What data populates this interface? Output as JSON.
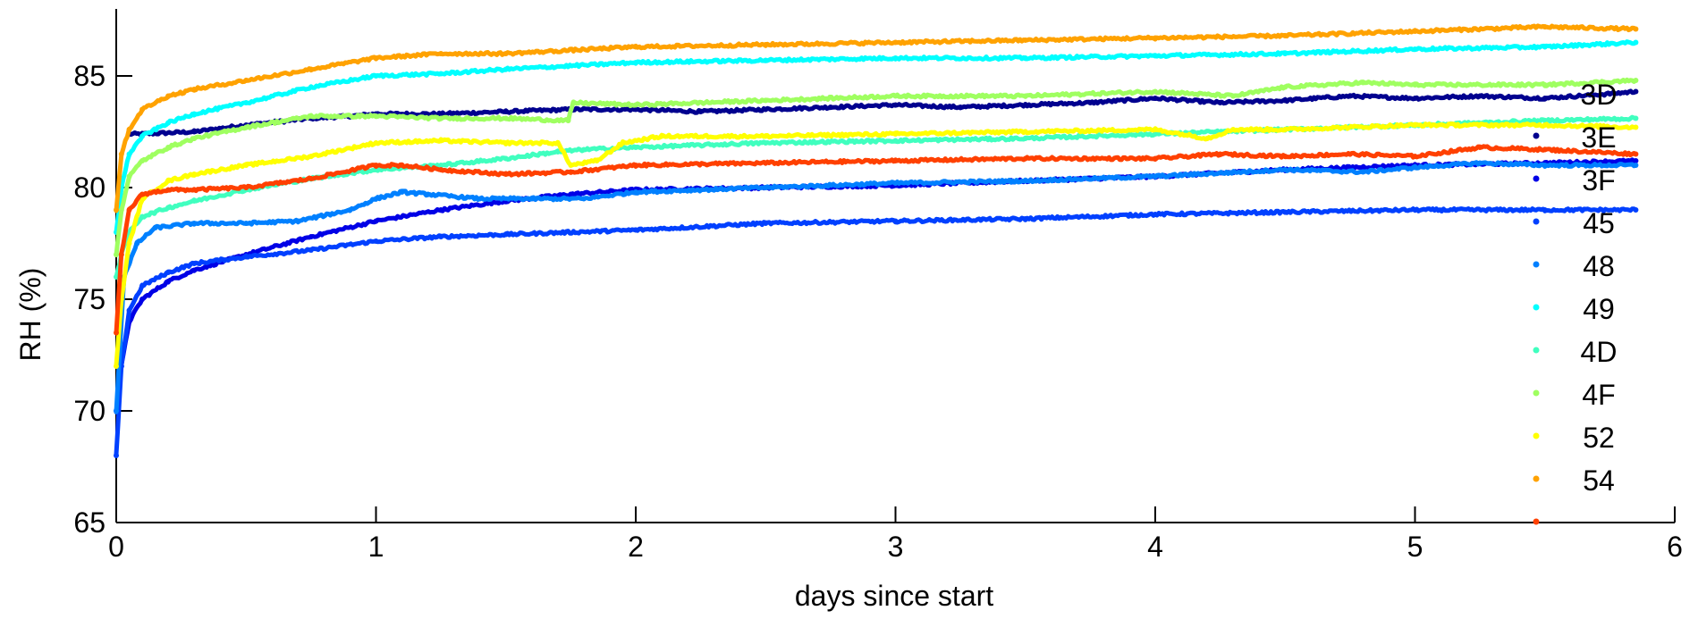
{
  "chart_data": {
    "type": "scatter",
    "title": "",
    "xlabel": "days since start",
    "ylabel": "RH (%)",
    "xlim": [
      0,
      6
    ],
    "ylim": [
      65,
      88
    ],
    "xticks": [
      0,
      1,
      2,
      3,
      4,
      5,
      6
    ],
    "yticks": [
      65,
      70,
      75,
      80,
      85
    ],
    "xtick_labels": [
      "0",
      "1",
      "2",
      "3",
      "4",
      "5",
      "6"
    ],
    "ytick_labels": [
      "65",
      "70",
      "75",
      "80",
      "85"
    ],
    "grid": false,
    "legend_position": "right",
    "series": [
      {
        "name": "3D",
        "color": "#00008f",
        "x": [
          0.05,
          0.1,
          0.3,
          0.5,
          0.75,
          0.9,
          1.0,
          1.25,
          1.5,
          1.75,
          2.0,
          2.25,
          2.5,
          2.75,
          3.0,
          3.25,
          3.5,
          3.75,
          4.0,
          4.25,
          4.5,
          4.75,
          5.0,
          5.25,
          5.5,
          5.75,
          5.85
        ],
        "y": [
          82.4,
          82.4,
          82.5,
          82.8,
          83.1,
          83.2,
          83.3,
          83.3,
          83.4,
          83.5,
          83.5,
          83.4,
          83.5,
          83.6,
          83.7,
          83.6,
          83.7,
          83.8,
          84.0,
          83.8,
          83.9,
          84.1,
          84.0,
          84.1,
          84.0,
          84.2,
          84.3
        ]
      },
      {
        "name": "3E",
        "color": "#0000e6",
        "x": [
          0.0,
          0.02,
          0.05,
          0.1,
          0.2,
          0.3,
          0.5,
          0.75,
          1.0,
          1.25,
          1.5,
          1.75,
          2.0,
          2.5,
          3.0,
          3.5,
          4.0,
          4.5,
          5.0,
          5.5,
          5.85
        ],
        "y": [
          70.0,
          72.0,
          74.0,
          75.0,
          75.8,
          76.3,
          77.0,
          77.8,
          78.5,
          79.0,
          79.4,
          79.7,
          79.9,
          80.0,
          80.1,
          80.3,
          80.5,
          80.8,
          81.0,
          81.1,
          81.2
        ]
      },
      {
        "name": "3F",
        "color": "#0040ff",
        "x": [
          0.0,
          0.02,
          0.05,
          0.1,
          0.2,
          0.3,
          0.5,
          0.75,
          1.0,
          1.25,
          1.5,
          2.0,
          2.5,
          3.0,
          3.5,
          4.0,
          4.5,
          5.0,
          5.5,
          5.85
        ],
        "y": [
          68.0,
          72.0,
          74.5,
          75.6,
          76.2,
          76.6,
          76.9,
          77.2,
          77.6,
          77.8,
          77.9,
          78.1,
          78.4,
          78.5,
          78.6,
          78.8,
          78.9,
          79.0,
          79.0,
          79.0
        ]
      },
      {
        "name": "45",
        "color": "#0080ff",
        "x": [
          0.0,
          0.03,
          0.08,
          0.15,
          0.3,
          0.5,
          0.7,
          0.9,
          1.0,
          1.1,
          1.2,
          1.4,
          1.6,
          1.8,
          2.0,
          2.5,
          3.0,
          3.5,
          4.0,
          4.5,
          4.8,
          5.0,
          5.25,
          5.5,
          5.85
        ],
        "y": [
          70.0,
          76.0,
          77.5,
          78.2,
          78.4,
          78.4,
          78.5,
          79.0,
          79.5,
          79.8,
          79.7,
          79.5,
          79.5,
          79.5,
          79.8,
          80.0,
          80.2,
          80.3,
          80.5,
          80.8,
          80.7,
          80.9,
          81.1,
          81.0,
          81.0
        ]
      },
      {
        "name": "48",
        "color": "#00ffff",
        "x": [
          0.0,
          0.02,
          0.05,
          0.1,
          0.2,
          0.3,
          0.5,
          0.75,
          1.0,
          1.25,
          1.5,
          2.0,
          2.5,
          3.0,
          3.5,
          4.0,
          4.5,
          5.0,
          5.5,
          5.85
        ],
        "y": [
          78.0,
          80.0,
          81.5,
          82.3,
          82.9,
          83.3,
          83.8,
          84.5,
          85.0,
          85.1,
          85.3,
          85.6,
          85.7,
          85.8,
          85.8,
          85.9,
          86.0,
          86.2,
          86.3,
          86.5
        ]
      },
      {
        "name": "49",
        "color": "#40ffbf",
        "x": [
          0.0,
          0.02,
          0.05,
          0.1,
          0.2,
          0.3,
          0.5,
          0.75,
          1.0,
          1.25,
          1.5,
          1.7,
          1.8,
          2.0,
          2.5,
          3.0,
          3.5,
          4.0,
          4.5,
          5.0,
          5.5,
          5.85
        ],
        "y": [
          76.0,
          77.0,
          78.0,
          78.7,
          79.1,
          79.4,
          79.9,
          80.4,
          80.8,
          81.0,
          81.3,
          81.6,
          81.7,
          81.8,
          82.0,
          82.1,
          82.2,
          82.4,
          82.6,
          82.8,
          83.0,
          83.1
        ]
      },
      {
        "name": "4D",
        "color": "#9fff60",
        "x": [
          0.0,
          0.02,
          0.05,
          0.1,
          0.2,
          0.3,
          0.5,
          0.75,
          1.0,
          1.25,
          1.5,
          1.74,
          1.76,
          2.0,
          2.5,
          3.0,
          3.5,
          4.0,
          4.3,
          4.5,
          4.8,
          5.0,
          5.5,
          5.85
        ],
        "y": [
          77.0,
          79.0,
          80.5,
          81.2,
          81.8,
          82.2,
          82.7,
          83.2,
          83.2,
          83.1,
          83.1,
          83.0,
          83.8,
          83.7,
          83.9,
          84.1,
          84.1,
          84.3,
          84.1,
          84.5,
          84.7,
          84.6,
          84.6,
          84.8
        ]
      },
      {
        "name": "4F",
        "color": "#ffff00",
        "x": [
          0.0,
          0.02,
          0.05,
          0.1,
          0.2,
          0.3,
          0.5,
          0.75,
          1.0,
          1.25,
          1.5,
          1.7,
          1.75,
          1.85,
          1.95,
          2.1,
          2.5,
          3.0,
          3.5,
          4.0,
          4.2,
          4.3,
          4.5,
          5.0,
          5.5,
          5.85
        ],
        "y": [
          72.0,
          75.0,
          77.5,
          79.5,
          80.3,
          80.6,
          81.0,
          81.4,
          82.0,
          82.1,
          82.0,
          82.0,
          81.0,
          81.2,
          82.0,
          82.3,
          82.3,
          82.4,
          82.5,
          82.6,
          82.2,
          82.6,
          82.6,
          82.8,
          82.8,
          82.7
        ]
      },
      {
        "name": "52",
        "color": "#ffa200",
        "x": [
          0.0,
          0.02,
          0.05,
          0.1,
          0.2,
          0.3,
          0.5,
          0.75,
          1.0,
          1.25,
          1.5,
          2.0,
          2.5,
          3.0,
          3.5,
          4.0,
          4.5,
          5.0,
          5.5,
          5.85
        ],
        "y": [
          79.0,
          81.5,
          82.6,
          83.5,
          84.1,
          84.4,
          84.8,
          85.3,
          85.8,
          86.0,
          86.0,
          86.3,
          86.4,
          86.5,
          86.6,
          86.7,
          86.8,
          87.0,
          87.2,
          87.1
        ]
      },
      {
        "name": "54",
        "color": "#ff4000",
        "x": [
          0.0,
          0.02,
          0.05,
          0.1,
          0.2,
          0.3,
          0.5,
          0.75,
          1.0,
          1.1,
          1.25,
          1.5,
          1.75,
          2.0,
          2.5,
          3.0,
          3.5,
          4.0,
          4.25,
          4.5,
          4.75,
          5.0,
          5.25,
          5.5,
          5.85
        ],
        "y": [
          73.5,
          77.0,
          79.0,
          79.7,
          79.9,
          79.9,
          80.0,
          80.4,
          81.0,
          81.0,
          80.8,
          80.6,
          80.7,
          81.0,
          81.1,
          81.2,
          81.3,
          81.3,
          81.5,
          81.4,
          81.5,
          81.4,
          81.8,
          81.7,
          81.5
        ]
      }
    ]
  }
}
